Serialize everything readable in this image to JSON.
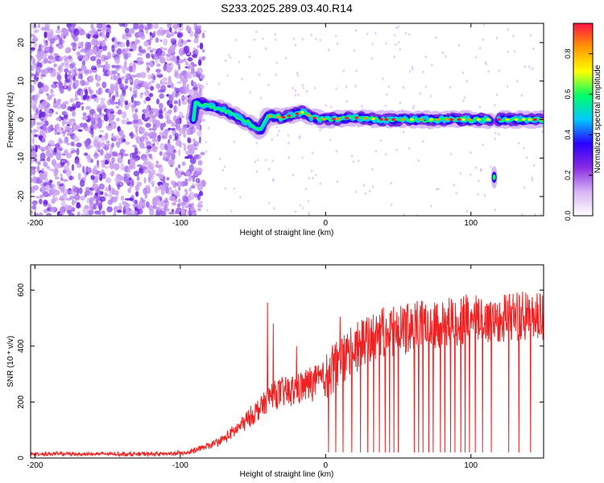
{
  "title": "S233.2025.289.03.40.R14",
  "colors": {
    "snr_line": "#ee2222",
    "spec_low": "#c89ef0",
    "spec_mid": "#6a1fe0",
    "axis": "#000000"
  },
  "colorbar": {
    "label": "Normalized spectral amplitude",
    "range": [
      0,
      0.95
    ],
    "ticks": [
      0.0,
      0.2,
      0.4,
      0.6,
      0.8
    ],
    "tick_labels": [
      "0.0",
      "0.2",
      "0.4",
      "0.6",
      "0.8"
    ],
    "colormap": [
      "#ffffff",
      "#d6b4f4",
      "#8a2be2",
      "#2a00ff",
      "#00c8ff",
      "#00ff66",
      "#ffff00",
      "#ff9900",
      "#ff1144"
    ]
  },
  "chart_data": [
    {
      "type": "heatmap",
      "title": "",
      "xlabel": "Height of straight line (km)",
      "ylabel": "Frequency (Hz)",
      "xlim": [
        -203,
        150
      ],
      "ylim": [
        -25,
        25
      ],
      "xticks": [
        -200,
        -100,
        0,
        100
      ],
      "xtick_labels": [
        "-200",
        "-100",
        "0",
        "100"
      ],
      "yticks": [
        -20,
        -10,
        0,
        10,
        20
      ],
      "ytick_labels": [
        "-20",
        "-10",
        "0",
        "10",
        "20"
      ],
      "grid": false,
      "description_points": {
        "noise_region_x": [
          -203,
          -92
        ],
        "signal_ridge": [
          [
            -90,
            4.5
          ],
          [
            -80,
            3.5
          ],
          [
            -70,
            2.5
          ],
          [
            -60,
            0.5
          ],
          [
            -50,
            -1.5
          ],
          [
            -45,
            -3
          ],
          [
            -40,
            1
          ],
          [
            -30,
            0.5
          ],
          [
            -20,
            1.5
          ],
          [
            -15,
            2
          ],
          [
            -10,
            0.5
          ],
          [
            0,
            0
          ],
          [
            20,
            0.5
          ],
          [
            40,
            0
          ],
          [
            60,
            0
          ],
          [
            80,
            0
          ],
          [
            100,
            0
          ],
          [
            113,
            0
          ],
          [
            120,
            0
          ],
          [
            135,
            0
          ],
          [
            150,
            0
          ]
        ],
        "isolated_blob": [
          [
            116,
            -15
          ]
        ]
      }
    },
    {
      "type": "line",
      "title": "",
      "xlabel": "Height of straight line (km)",
      "ylabel": "SNR (10 * v/v)",
      "xlim": [
        -203,
        150
      ],
      "ylim": [
        0,
        690
      ],
      "xticks": [
        -200,
        -100,
        0,
        100
      ],
      "xtick_labels": [
        "-200",
        "-100",
        "0",
        "100"
      ],
      "yticks": [
        0,
        200,
        400,
        600
      ],
      "ytick_labels": [
        "0",
        "200",
        "400",
        "600"
      ],
      "grid": false,
      "series": [
        {
          "name": "",
          "trend_x": [
            -203,
            -150,
            -110,
            -95,
            -80,
            -70,
            -60,
            -50,
            -42,
            -38,
            -30,
            -20,
            -10,
            0,
            10,
            20,
            30,
            40,
            50,
            60,
            70,
            80,
            90,
            100,
            110,
            120,
            130,
            140,
            150
          ],
          "trend_y": [
            15,
            15,
            15,
            20,
            45,
            70,
            110,
            160,
            200,
            230,
            240,
            250,
            275,
            290,
            340,
            390,
            420,
            450,
            450,
            470,
            480,
            480,
            490,
            500,
            490,
            500,
            510,
            500,
            500
          ],
          "spikes": [
            [
              -40,
              555
            ],
            [
              -36,
              480
            ],
            [
              -20,
              400
            ],
            [
              10,
              505
            ]
          ],
          "dropouts_x": [
            2,
            7,
            12,
            18,
            24,
            29,
            33,
            37,
            41,
            44,
            47,
            50,
            61,
            64,
            67,
            71,
            74,
            79,
            82,
            86,
            89,
            93,
            96,
            99,
            103,
            108,
            114,
            126,
            133,
            141
          ]
        }
      ]
    }
  ]
}
